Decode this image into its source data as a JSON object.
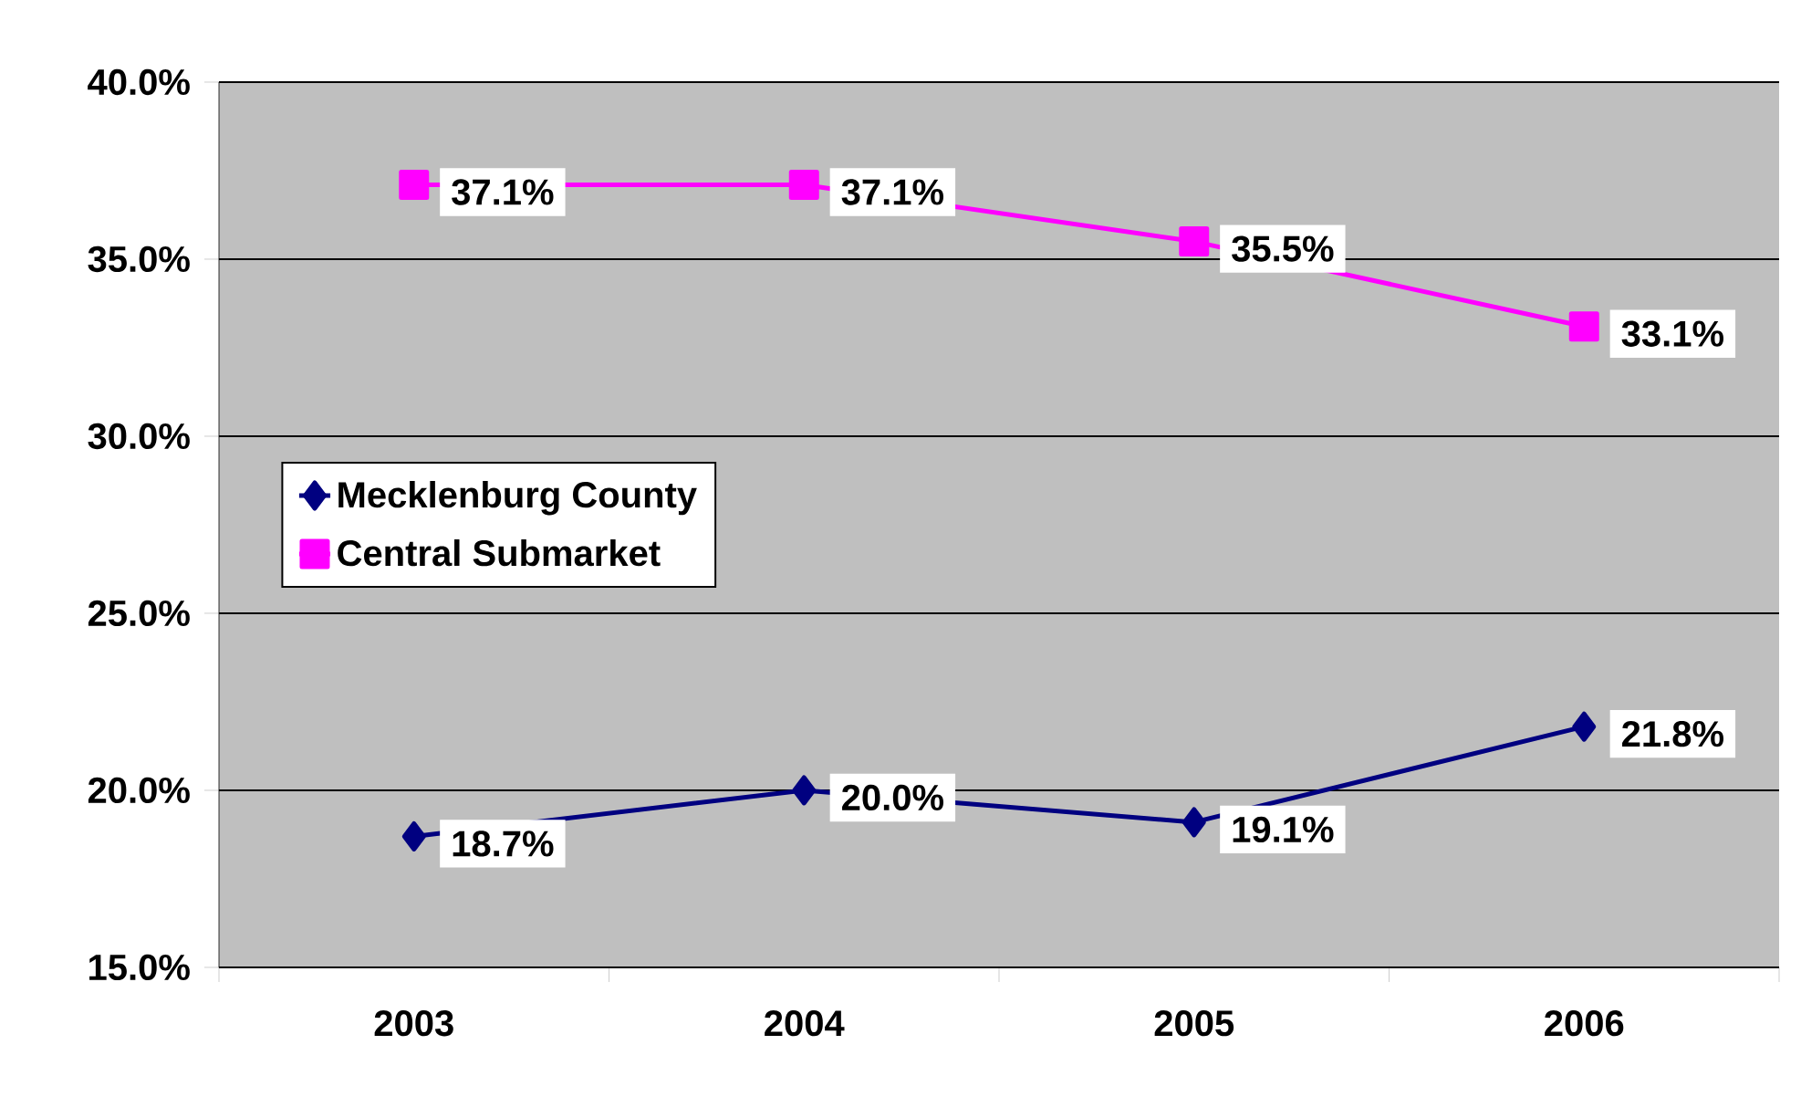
{
  "chart_data": {
    "type": "line",
    "categories": [
      "2003",
      "2004",
      "2005",
      "2006"
    ],
    "series": [
      {
        "name": "Mecklenburg County",
        "color": "#000080",
        "marker": "diamond",
        "values": [
          18.7,
          20.0,
          19.1,
          21.8
        ],
        "value_labels": [
          "18.7%",
          "20.0%",
          "19.1%",
          "21.8%"
        ]
      },
      {
        "name": "Central Submarket",
        "color": "#ff00ff",
        "marker": "square",
        "values": [
          37.1,
          37.1,
          35.5,
          33.1
        ],
        "value_labels": [
          "37.1%",
          "37.1%",
          "35.5%",
          "33.1%"
        ]
      }
    ],
    "ylim": [
      15,
      40
    ],
    "yticks": [
      {
        "value": 15,
        "label": "15.0%"
      },
      {
        "value": 20,
        "label": "20.0%"
      },
      {
        "value": 25,
        "label": "25.0%"
      },
      {
        "value": 30,
        "label": "30.0%"
      },
      {
        "value": 35,
        "label": "35.0%"
      },
      {
        "value": 40,
        "label": "40.0%"
      }
    ],
    "grid": "y",
    "legend": "left"
  }
}
